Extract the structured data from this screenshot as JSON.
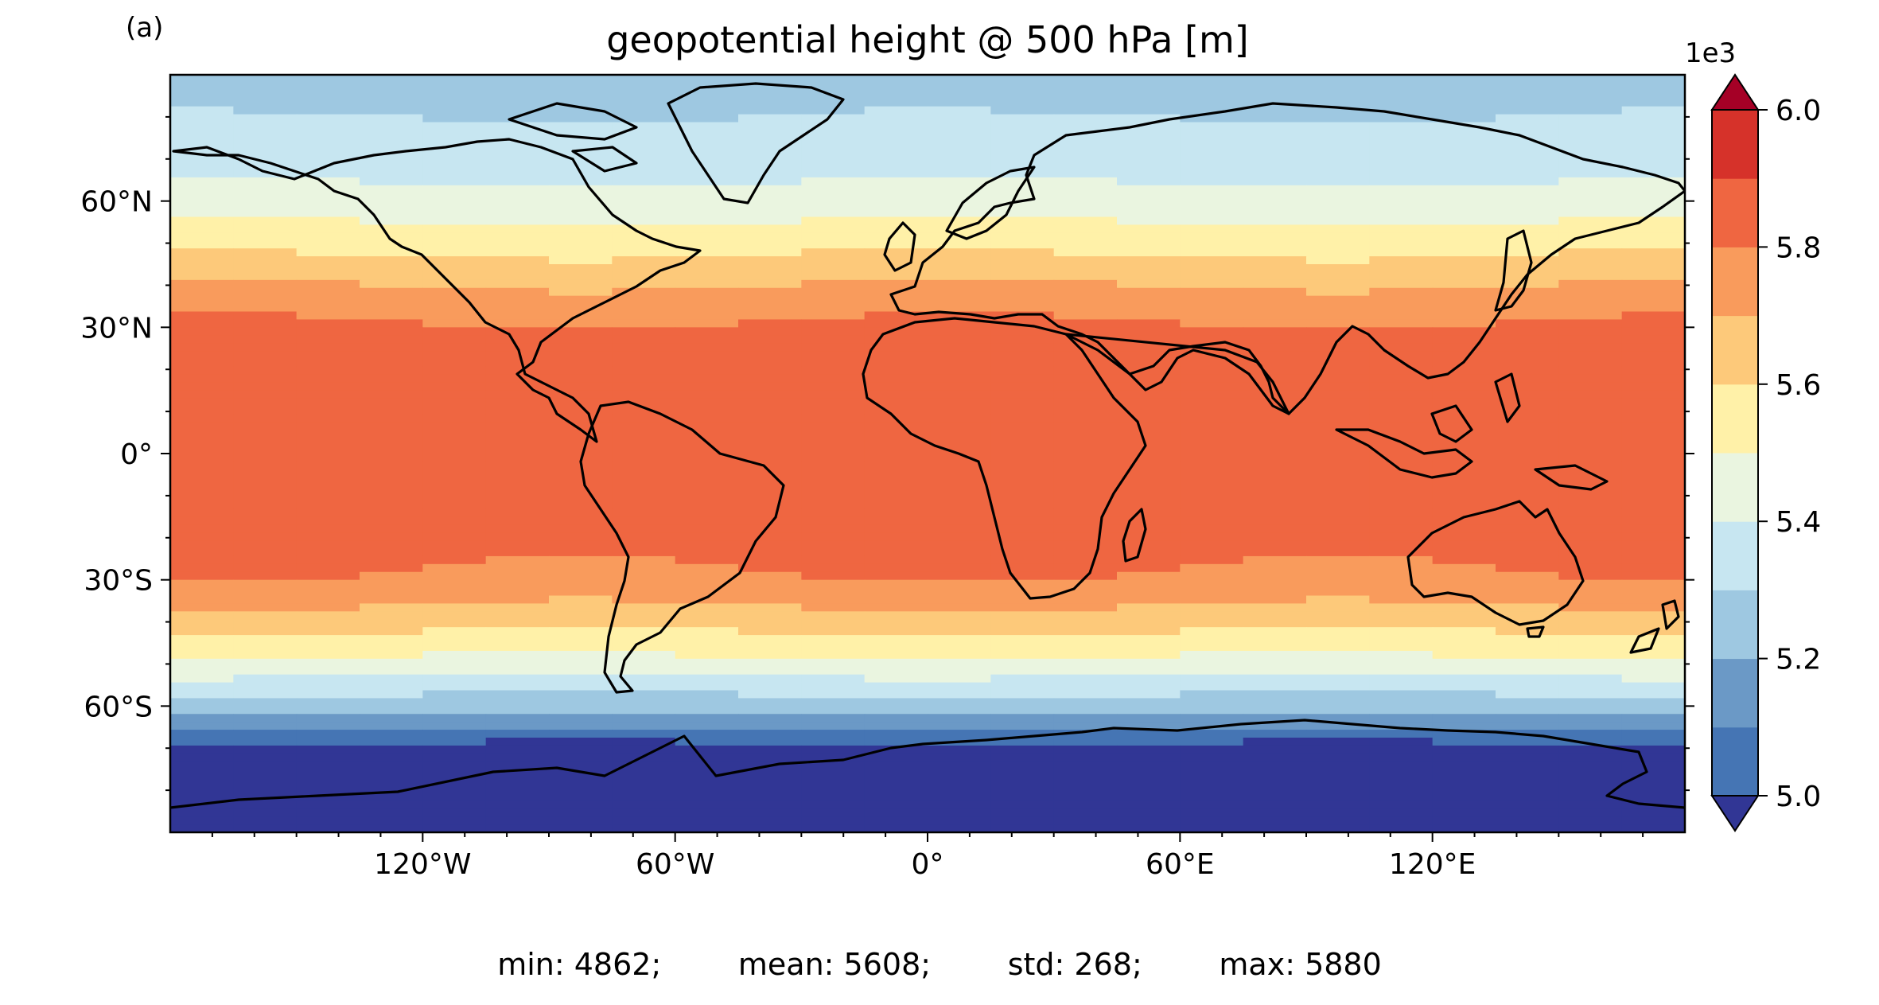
{
  "panel_label": "(a)",
  "title": "geopotential height @ 500 hPa [m]",
  "chart_data": {
    "type": "heatmap",
    "projection": "PlateCarree",
    "title": "geopotential height @ 500 hPa [m]",
    "xlim": [
      -180,
      180
    ],
    "ylim": [
      -90,
      90
    ],
    "x_ticks": [
      {
        "value": -120,
        "label": "120°W"
      },
      {
        "value": -60,
        "label": "60°W"
      },
      {
        "value": 0,
        "label": "0°"
      },
      {
        "value": 60,
        "label": "60°E"
      },
      {
        "value": 120,
        "label": "120°E"
      }
    ],
    "y_ticks": [
      {
        "value": 60,
        "label": "60°N"
      },
      {
        "value": 30,
        "label": "30°N"
      },
      {
        "value": 0,
        "label": "0°"
      },
      {
        "value": -30,
        "label": "30°S"
      },
      {
        "value": -60,
        "label": "60°S"
      }
    ],
    "zonal_profile_lat": [
      90,
      80,
      70,
      60,
      50,
      40,
      30,
      20,
      10,
      0,
      -10,
      -20,
      -30,
      -40,
      -50,
      -55,
      -60,
      -65,
      -70,
      -80,
      -90
    ],
    "zonal_profile_z": [
      5280,
      5300,
      5350,
      5440,
      5560,
      5700,
      5820,
      5860,
      5870,
      5875,
      5870,
      5850,
      5790,
      5640,
      5470,
      5350,
      5240,
      5130,
      4950,
      4900,
      4880
    ],
    "colorbar": {
      "multiplier_label": "1e3",
      "levels": [
        5.0,
        5.1,
        5.2,
        5.3,
        5.4,
        5.5,
        5.6,
        5.7,
        5.8,
        5.9,
        6.0
      ],
      "tick_values": [
        5.0,
        5.2,
        5.4,
        5.6,
        5.8,
        6.0
      ],
      "tick_labels": [
        "5.0",
        "5.2",
        "5.4",
        "5.6",
        "5.8",
        "6.0"
      ],
      "colors": [
        "#4575b4",
        "#6b99c6",
        "#9ec8e1",
        "#c7e6f1",
        "#eaf5e0",
        "#fff1a8",
        "#fdc97a",
        "#f99b5c",
        "#ef6641",
        "#d6322a"
      ],
      "under_color": "#313695",
      "over_color": "#a50026",
      "extend": "both"
    }
  },
  "stats": {
    "min": "min: 4862;",
    "mean": "mean: 5608;",
    "std": "std: 268;",
    "max": "max: 5880"
  }
}
